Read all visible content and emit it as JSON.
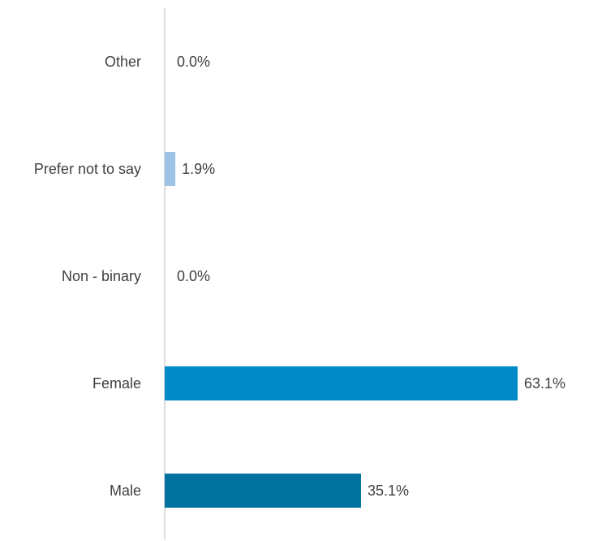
{
  "chart_data": {
    "type": "bar",
    "orientation": "horizontal",
    "categories": [
      "Other",
      "Prefer not to say",
      "Non - binary",
      "Female",
      "Male"
    ],
    "values": [
      0.0,
      1.9,
      0.0,
      63.1,
      35.1
    ],
    "value_labels": [
      "0.0%",
      "1.9%",
      "0.0%",
      "63.1%",
      "35.1%"
    ],
    "colors": [
      "#9dc3e6",
      "#9dc3e6",
      "#9dc3e6",
      "#008ac6",
      "#0072a0"
    ],
    "axis_color": "#d0d0d0",
    "title": "",
    "xlabel": "",
    "ylabel": "",
    "xlim": [
      0,
      63.1
    ],
    "grid": false,
    "legend": "none"
  }
}
